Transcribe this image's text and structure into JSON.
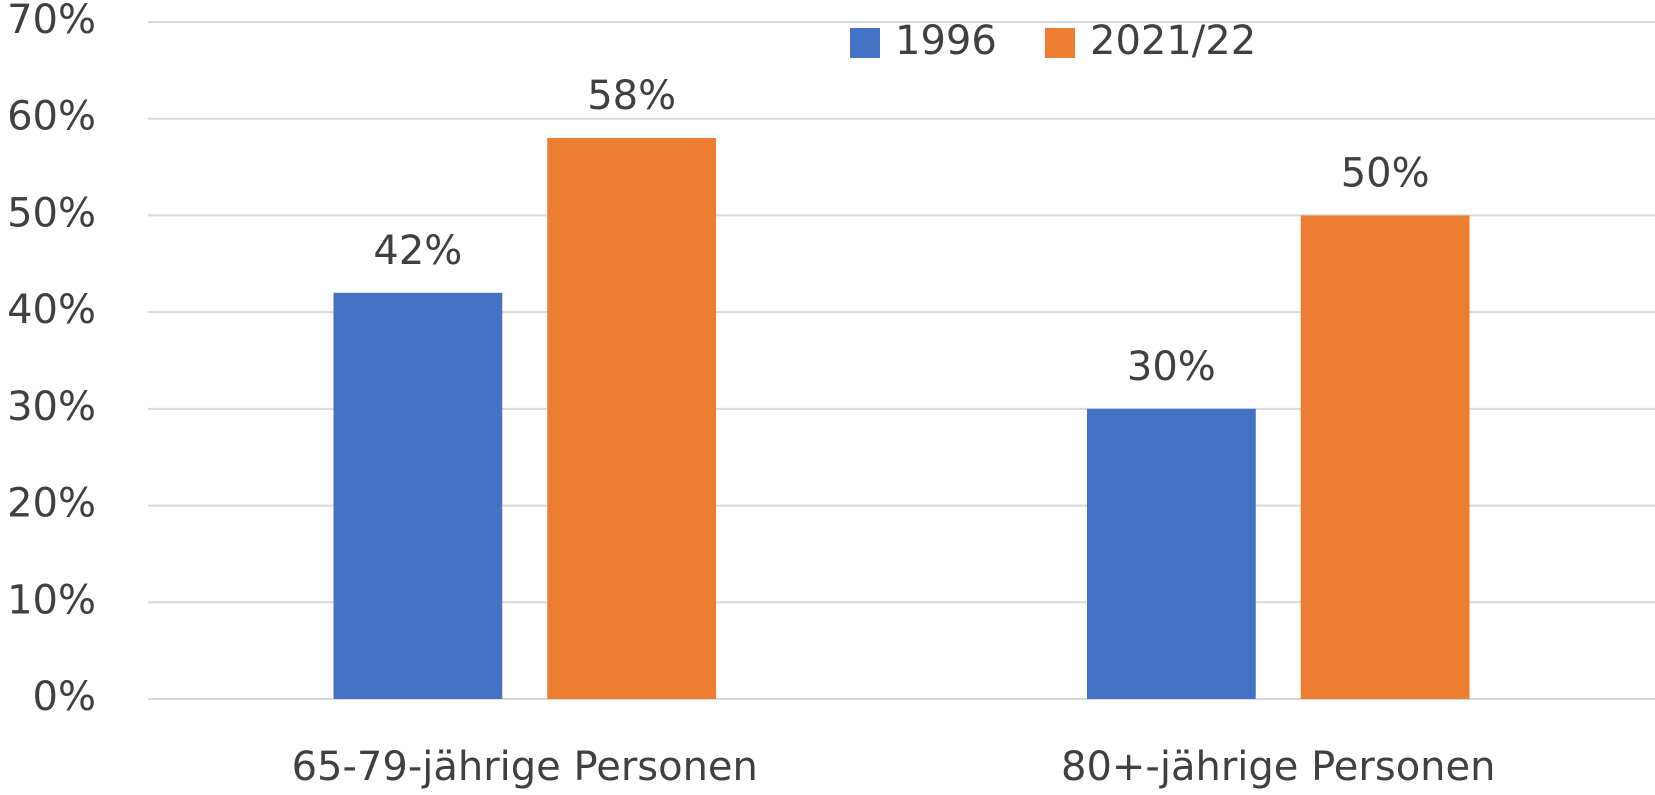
{
  "chart_data": {
    "type": "bar",
    "categories": [
      "65-79-jährige Personen",
      "80+-jährige Personen"
    ],
    "series": [
      {
        "name": "1996",
        "color": "#4472c4",
        "values": [
          42,
          30
        ],
        "value_labels": [
          "42%",
          "30%"
        ]
      },
      {
        "name": "2021/22",
        "color": "#ed7d31",
        "values": [
          58,
          50
        ],
        "value_labels": [
          "58%",
          "50%"
        ]
      }
    ],
    "ylim": [
      0,
      70
    ],
    "yticks": [
      {
        "value": 0,
        "label": "0%"
      },
      {
        "value": 10,
        "label": "10%"
      },
      {
        "value": 20,
        "label": "20%"
      },
      {
        "value": 30,
        "label": "30%"
      },
      {
        "value": 40,
        "label": "40%"
      },
      {
        "value": 50,
        "label": "50%"
      },
      {
        "value": 60,
        "label": "60%"
      },
      {
        "value": 70,
        "label": "70%"
      }
    ],
    "grid": true,
    "legend": "top"
  }
}
